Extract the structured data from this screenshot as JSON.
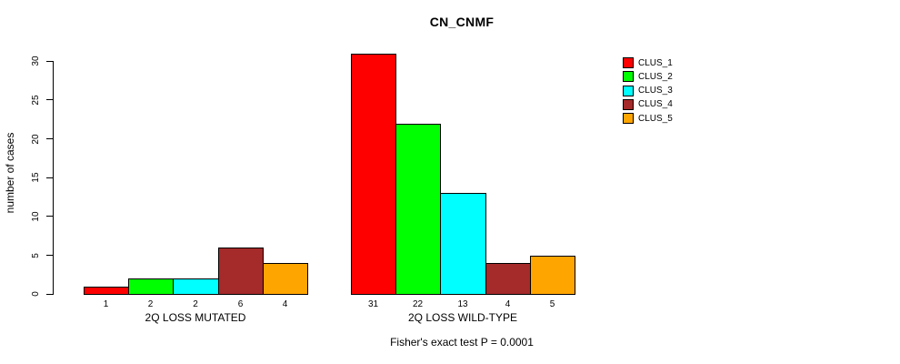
{
  "header": {
    "title": "CN_CNMF"
  },
  "chart_data": {
    "type": "bar",
    "title": "CN_CNMF",
    "xlabel": "",
    "ylabel": "number of cases",
    "ylim": [
      0,
      30
    ],
    "yticks": [
      0,
      5,
      10,
      15,
      20,
      25,
      30
    ],
    "grid": false,
    "legend_position": "right",
    "bar_value_labels_shown": true,
    "annotation": "Fisher's exact test P = 0.0001",
    "categories": [
      "2Q LOSS MUTATED",
      "2Q LOSS WILD-TYPE"
    ],
    "series": [
      {
        "name": "CLUS_1",
        "color": "#FF0000",
        "values": [
          1,
          31
        ]
      },
      {
        "name": "CLUS_2",
        "color": "#00FF00",
        "values": [
          2,
          22
        ]
      },
      {
        "name": "CLUS_3",
        "color": "#00FFFF",
        "values": [
          2,
          13
        ]
      },
      {
        "name": "CLUS_4",
        "color": "#A52A2A",
        "values": [
          6,
          4
        ]
      },
      {
        "name": "CLUS_5",
        "color": "#FFA500",
        "values": [
          4,
          5
        ]
      }
    ]
  },
  "colors": {
    "background": "#FFFFFF",
    "axis": "#000000",
    "text": "#000000",
    "bar_border": "#000000"
  }
}
